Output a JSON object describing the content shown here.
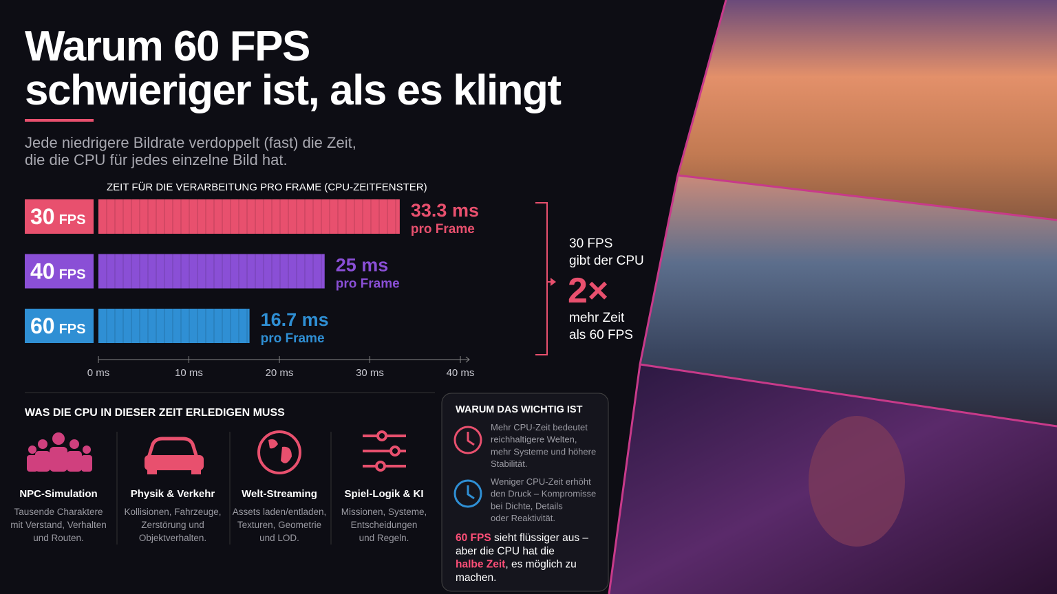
{
  "header": {
    "title": [
      "Warum 60 FPS",
      "schwieriger ist, als es klingt"
    ],
    "subtitle": [
      "Jede niedrigere Bildrate verdoppelt (fast) die Zeit,",
      "die die CPU für jedes einzelne Bild hat."
    ]
  },
  "chart_data": {
    "type": "bar",
    "orientation": "horizontal",
    "title": "ZEIT FÜR DIE VERARBEITUNG PRO FRAME (CPU-ZEITFENSTER)",
    "categories": [
      "30",
      "40",
      "60"
    ],
    "category_unit": "FPS",
    "values": [
      33.3,
      25,
      16.7
    ],
    "value_labels": [
      "33.3 ms",
      "25 ms",
      "16.7 ms"
    ],
    "value_sublabel": "pro Frame",
    "colors": [
      "#e8506e",
      "#8a4fd6",
      "#2f8fd4"
    ],
    "xlim": [
      0,
      40
    ],
    "xticks": [
      {
        "value": 0,
        "label": "0 ms"
      },
      {
        "value": 10,
        "label": "10 ms"
      },
      {
        "value": 20,
        "label": "20 ms"
      },
      {
        "value": 30,
        "label": "30 ms"
      },
      {
        "value": 40,
        "label": "40 ms"
      }
    ],
    "annotation": {
      "lines": [
        "30 FPS",
        "gibt der CPU"
      ],
      "emphasis": "2×",
      "lines_after": [
        "mehr Zeit",
        "als 60 FPS"
      ]
    }
  },
  "tasks": {
    "heading": "WAS DIE CPU IN DIESER ZEIT ERLEDIGEN MUSS",
    "items": [
      {
        "title": "NPC-Simulation",
        "description": [
          "Tausende Charaktere",
          "mit Verstand, Verhalten",
          "und Routen."
        ]
      },
      {
        "title": "Physik & Verkehr",
        "description": [
          "Kollisionen, Fahrzeuge,",
          "Zerstörung und",
          "Objektverhalten."
        ]
      },
      {
        "title": "Welt-Streaming",
        "description": [
          "Assets laden/entladen,",
          "Texturen, Geometrie",
          "und LOD."
        ]
      },
      {
        "title": "Spiel-Logik & KI",
        "description": [
          "Missionen, Systeme,",
          "Entscheidungen",
          "und Regeln."
        ]
      }
    ]
  },
  "why_box": {
    "title": "WARUM DAS WICHTIG IST",
    "items": [
      [
        "Mehr CPU-Zeit bedeutet",
        "reichhaltigere Welten,",
        "mehr Systeme und höhere",
        "Stabilität."
      ],
      [
        "Weniger CPU-Zeit erhöht",
        "den Druck – Kompromisse",
        "bei Dichte, Details",
        "oder Reaktivität."
      ]
    ],
    "conclusion": [
      [
        {
          "text": "60 FPS",
          "color": "#ff4f78"
        },
        {
          "text": " sieht flüssiger aus –"
        }
      ],
      [
        {
          "text": "aber die CPU hat die"
        }
      ],
      [
        {
          "text": "halbe Zeit",
          "color": "#ff4f78"
        },
        {
          "text": ", es möglich zu"
        }
      ],
      [
        {
          "text": "machen."
        }
      ]
    ]
  }
}
